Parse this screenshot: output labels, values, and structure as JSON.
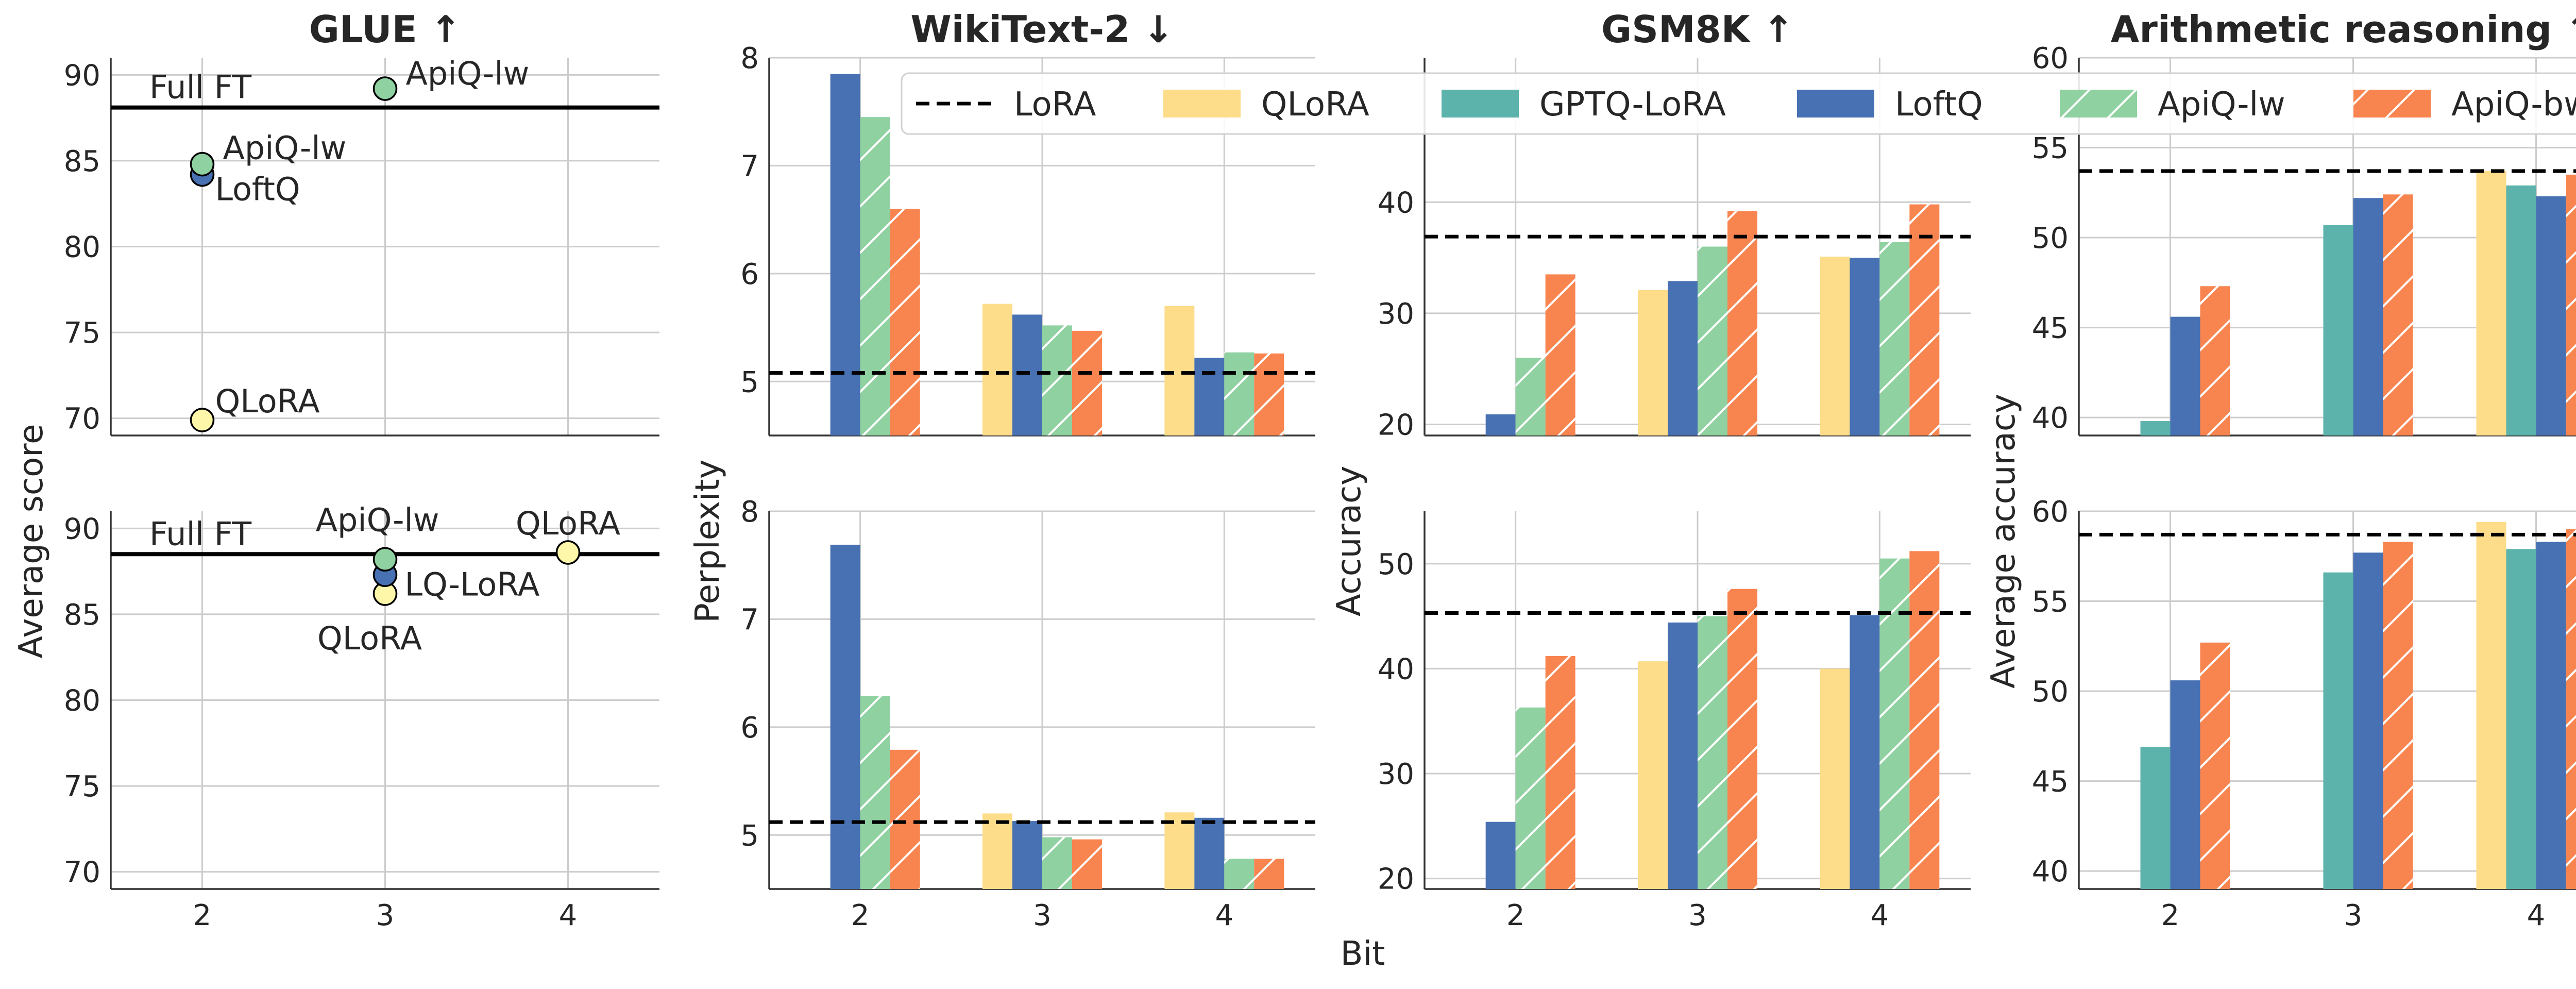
{
  "figure": {
    "xlabel": "Bit"
  },
  "legend": {
    "items": [
      {
        "label": "LoRA",
        "color": "#000000",
        "kind": "dashed"
      },
      {
        "label": "QLoRA",
        "color": "#fddc8a",
        "kind": "bar"
      },
      {
        "label": "GPTQ-LoRA",
        "color": "#5bb3ac",
        "kind": "bar"
      },
      {
        "label": "LoftQ",
        "color": "#4771b2",
        "kind": "bar"
      },
      {
        "label": "ApiQ-lw",
        "color": "#8fd1a1",
        "kind": "hatched"
      },
      {
        "label": "ApiQ-bw",
        "color": "#f8844f",
        "kind": "hatched"
      }
    ]
  },
  "chart_data": [
    {
      "id": "glue-top",
      "type": "scatter",
      "title": "GLUE ↑",
      "ylabel": "Average score",
      "ylim": [
        69,
        91
      ],
      "yticks": [
        70,
        75,
        80,
        85,
        90
      ],
      "xlim": [
        1.5,
        4.5
      ],
      "xticks": [
        2,
        3,
        4
      ],
      "show_xticklabels": false,
      "hline": {
        "label": "Full FT",
        "value": 88.1
      },
      "points": [
        {
          "label": "QLoRA",
          "x": 2,
          "y": 69.9,
          "color": "#fef6a8"
        },
        {
          "label": "LoftQ",
          "x": 2,
          "y": 84.2,
          "color": "#4771b2"
        },
        {
          "label": "ApiQ-lw",
          "x": 2,
          "y": 84.8,
          "color": "#8fd1a1"
        },
        {
          "label": "ApiQ-lw",
          "x": 3,
          "y": 89.2,
          "color": "#8fd1a1"
        }
      ]
    },
    {
      "id": "glue-bottom",
      "type": "scatter",
      "title": "",
      "ylabel": "",
      "ylim": [
        69,
        91
      ],
      "yticks": [
        70,
        75,
        80,
        85,
        90
      ],
      "xlim": [
        1.5,
        4.5
      ],
      "xticks": [
        2,
        3,
        4
      ],
      "show_xticklabels": true,
      "hline": {
        "label": "Full FT",
        "value": 88.5
      },
      "points": [
        {
          "label": "QLoRA",
          "x": 3,
          "y": 86.2,
          "color": "#fef6a8"
        },
        {
          "label": "LQ-LoRA",
          "x": 3,
          "y": 87.3,
          "color": "#4771b2"
        },
        {
          "label": "ApiQ-lw",
          "x": 3,
          "y": 88.2,
          "color": "#8fd1a1"
        },
        {
          "label": "QLoRA",
          "x": 4,
          "y": 88.6,
          "color": "#fef6a8"
        }
      ]
    },
    {
      "id": "wiki-top",
      "type": "bar",
      "title": "WikiText-2 ↓",
      "ylabel": "Perplexity",
      "ylim": [
        4.5,
        8
      ],
      "yticks": [
        5,
        6,
        7,
        8
      ],
      "categories": [
        "2",
        "3",
        "4"
      ],
      "show_xticklabels": false,
      "lora": 5.08,
      "series": [
        {
          "name": "QLoRA",
          "values": [
            null,
            5.72,
            5.7
          ]
        },
        {
          "name": "LoftQ",
          "values": [
            7.85,
            5.62,
            5.22
          ]
        },
        {
          "name": "ApiQ-lw",
          "values": [
            7.45,
            5.52,
            5.27
          ]
        },
        {
          "name": "ApiQ-bw",
          "values": [
            6.6,
            5.47,
            5.26
          ]
        }
      ]
    },
    {
      "id": "wiki-bottom",
      "type": "bar",
      "title": "",
      "ylabel": "",
      "ylim": [
        4.5,
        8
      ],
      "yticks": [
        5,
        6,
        7,
        8
      ],
      "categories": [
        "2",
        "3",
        "4"
      ],
      "show_xticklabels": true,
      "lora": 5.12,
      "series": [
        {
          "name": "QLoRA",
          "values": [
            null,
            5.2,
            5.21
          ]
        },
        {
          "name": "LoftQ",
          "values": [
            7.69,
            5.13,
            5.16
          ]
        },
        {
          "name": "ApiQ-lw",
          "values": [
            6.29,
            4.98,
            4.78
          ]
        },
        {
          "name": "ApiQ-bw",
          "values": [
            5.79,
            4.96,
            4.78
          ]
        }
      ]
    },
    {
      "id": "gsm-top",
      "type": "bar",
      "title": "GSM8K ↑",
      "ylabel": "Accuracy",
      "ylim": [
        19,
        53
      ],
      "yticks": [
        20,
        30,
        40
      ],
      "categories": [
        "2",
        "3",
        "4"
      ],
      "show_xticklabels": false,
      "lora": 36.9,
      "series": [
        {
          "name": "QLoRA",
          "values": [
            null,
            32.1,
            35.1
          ]
        },
        {
          "name": "LoftQ",
          "values": [
            20.9,
            32.9,
            35.0
          ]
        },
        {
          "name": "ApiQ-lw",
          "values": [
            26.0,
            36.0,
            36.4
          ]
        },
        {
          "name": "ApiQ-bw",
          "values": [
            33.5,
            39.2,
            39.8
          ]
        }
      ]
    },
    {
      "id": "gsm-bottom",
      "type": "bar",
      "title": "",
      "ylabel": "",
      "ylim": [
        19,
        55
      ],
      "yticks": [
        20,
        30,
        40,
        50
      ],
      "categories": [
        "2",
        "3",
        "4"
      ],
      "show_xticklabels": true,
      "lora": 45.3,
      "series": [
        {
          "name": "QLoRA",
          "values": [
            null,
            40.7,
            40.0
          ]
        },
        {
          "name": "LoftQ",
          "values": [
            25.4,
            44.4,
            45.1
          ]
        },
        {
          "name": "ApiQ-lw",
          "values": [
            36.3,
            45.0,
            50.5
          ]
        },
        {
          "name": "ApiQ-bw",
          "values": [
            41.2,
            47.6,
            51.2
          ]
        }
      ]
    },
    {
      "id": "arith-top",
      "type": "bar",
      "title": "Arithmetic reasoning ↑",
      "ylabel": "Average accuracy",
      "ylim": [
        39,
        60
      ],
      "yticks": [
        40,
        45,
        50,
        55,
        60
      ],
      "categories": [
        "2",
        "3",
        "4"
      ],
      "show_xticklabels": false,
      "lora": 53.7,
      "series": [
        {
          "name": "QLoRA",
          "values": [
            null,
            null,
            53.7
          ]
        },
        {
          "name": "GPTQ-LoRA",
          "values": [
            39.8,
            50.7,
            52.9
          ]
        },
        {
          "name": "LoftQ",
          "values": [
            45.6,
            52.2,
            52.3
          ]
        },
        {
          "name": "ApiQ-bw",
          "values": [
            47.3,
            52.4,
            53.5
          ]
        }
      ]
    },
    {
      "id": "arith-bottom",
      "type": "bar",
      "title": "",
      "ylabel": "",
      "ylim": [
        39,
        60
      ],
      "yticks": [
        40,
        45,
        50,
        55,
        60
      ],
      "categories": [
        "2",
        "3",
        "4"
      ],
      "show_xticklabels": true,
      "lora": 58.7,
      "series": [
        {
          "name": "QLoRA",
          "values": [
            null,
            null,
            59.4
          ]
        },
        {
          "name": "GPTQ-LoRA",
          "values": [
            46.9,
            56.6,
            57.9
          ]
        },
        {
          "name": "LoftQ",
          "values": [
            50.6,
            57.7,
            58.3
          ]
        },
        {
          "name": "ApiQ-bw",
          "values": [
            52.7,
            58.3,
            59.0
          ]
        }
      ]
    }
  ]
}
